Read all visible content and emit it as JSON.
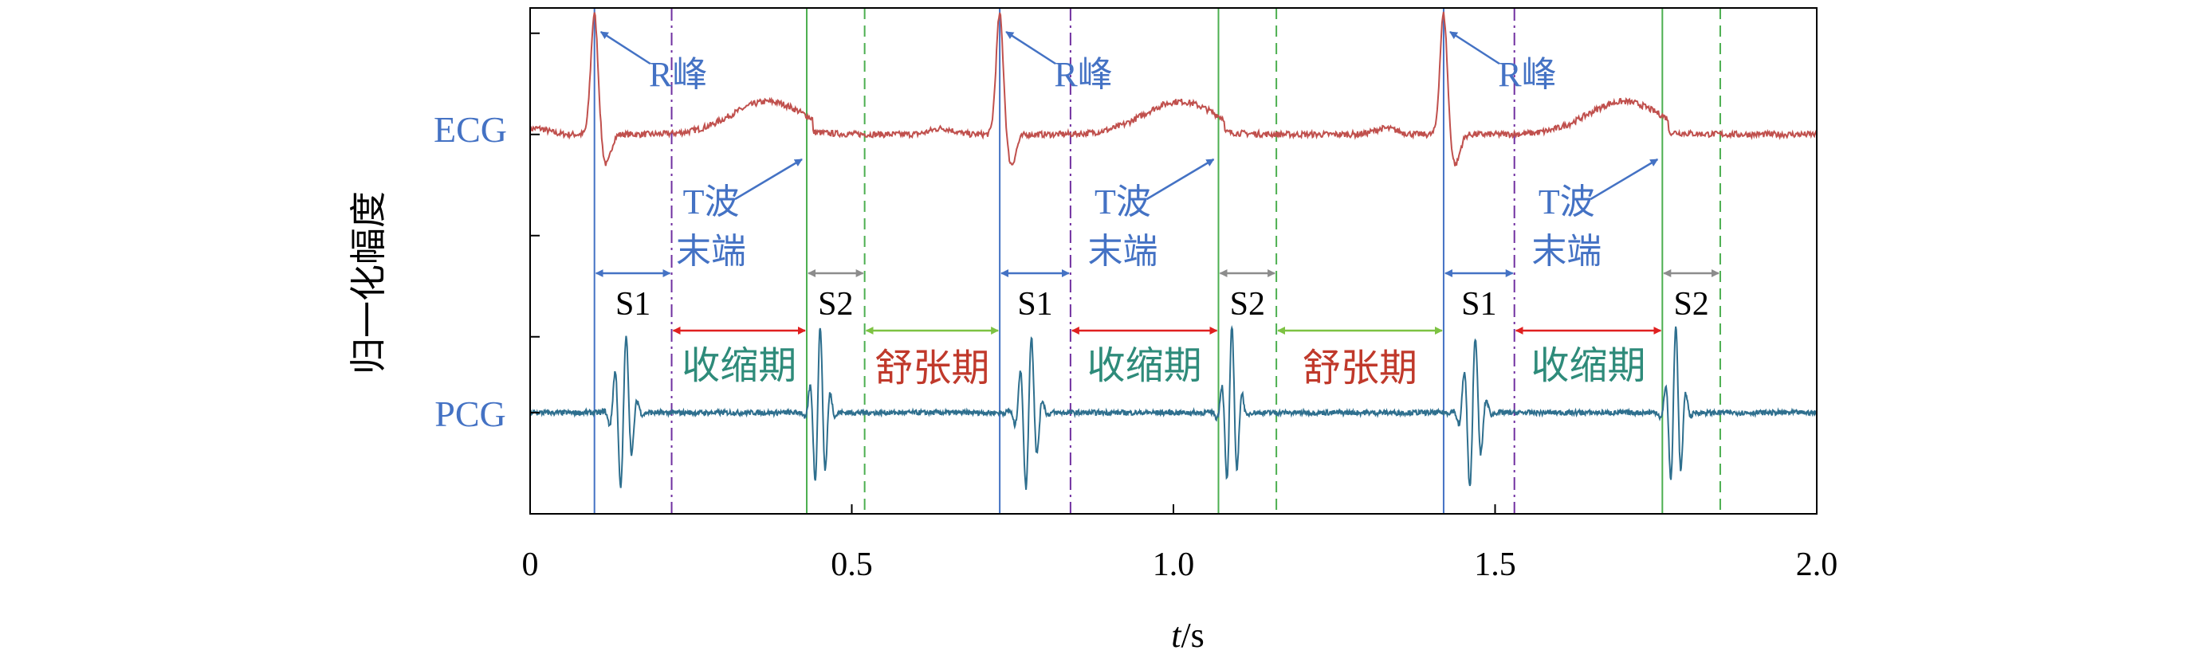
{
  "chart_data": {
    "type": "line",
    "xlabel": "t/s",
    "ylabel": "归一化幅度",
    "xlim": [
      0,
      2.0
    ],
    "x_ticks": [
      "0",
      "0.5",
      "1.0",
      "1.5",
      "2.0"
    ],
    "grid": false,
    "series": [
      {
        "name": "ECG",
        "color": "#c0504d",
        "baseline": 0.75
      },
      {
        "name": "PCG",
        "color": "#2e6f8e",
        "baseline": 0.2
      }
    ],
    "beats": [
      {
        "r_peak": 0.1,
        "s1_end": 0.22,
        "t_end": 0.43,
        "s2_end": 0.52
      },
      {
        "r_peak": 0.73,
        "s1_end": 0.84,
        "t_end": 1.07,
        "s2_end": 1.16
      },
      {
        "r_peak": 1.42,
        "s1_end": 1.53,
        "t_end": 1.76,
        "s2_end": 1.85
      }
    ],
    "annotations": {
      "r_peak": "R峰",
      "t_wave_line1": "T波",
      "t_wave_line2": "末端",
      "s1": "S1",
      "s2": "S2",
      "systole": "收缩期",
      "diastole": "舒张期"
    },
    "colors": {
      "r_line": "#4472c4",
      "s1_end_line": "#7030a0",
      "t_end_line": "#4caf50",
      "s2_end_line": "#4caf50",
      "s1_arrow": "#4472c4",
      "s2_arrow": "#8c8c8c",
      "systole": "#e02020",
      "diastole": "#7dc242",
      "text_blue": "#4472c4",
      "text_green": "#2e8b7a",
      "text_red": "#c0392b",
      "axis": "#000000"
    }
  }
}
